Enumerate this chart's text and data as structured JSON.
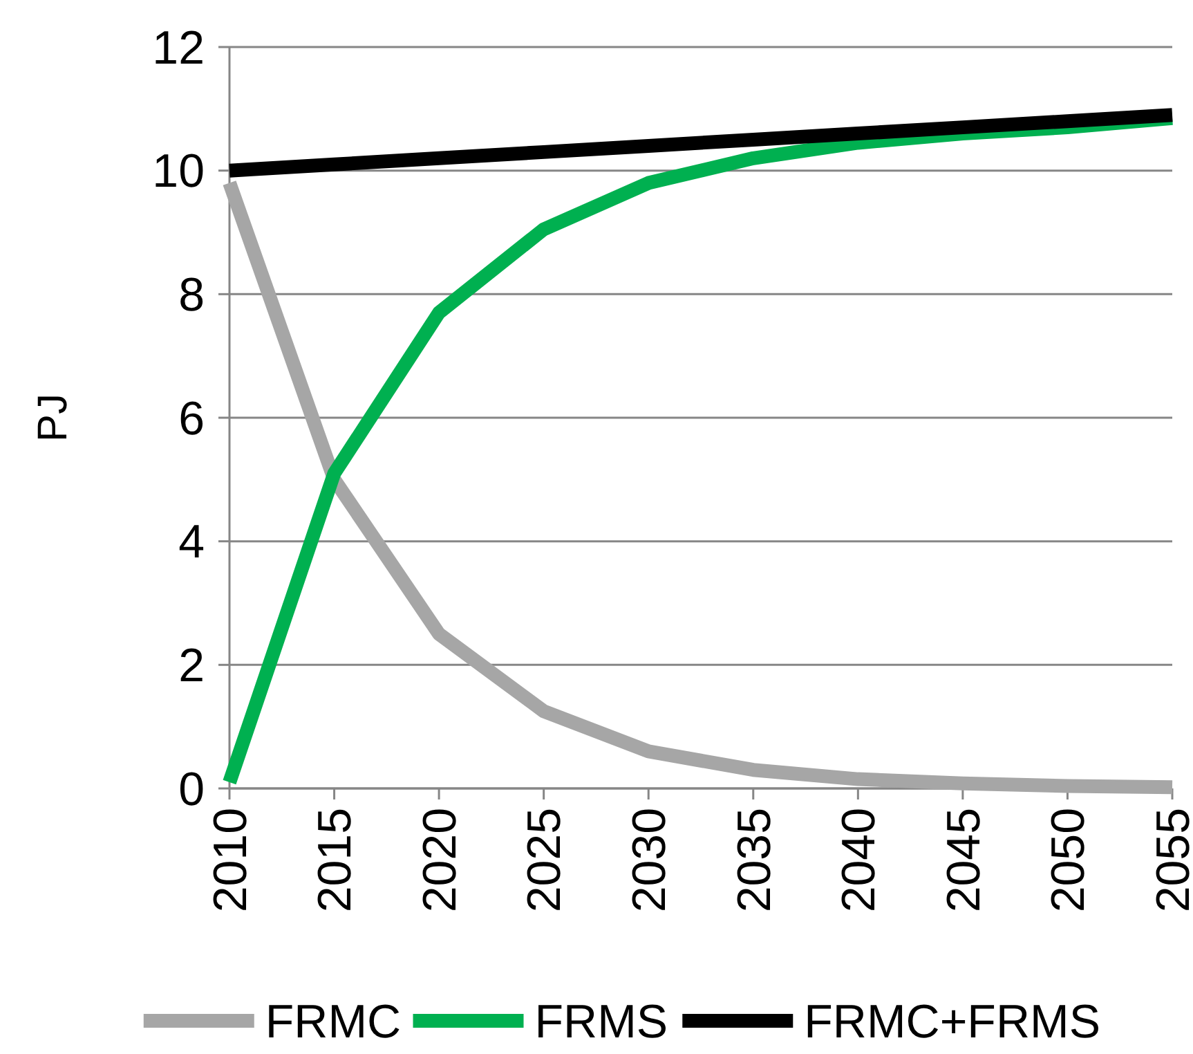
{
  "chart_data": {
    "type": "line",
    "ylabel": "PJ",
    "categories": [
      "2010",
      "2015",
      "2020",
      "2025",
      "2030",
      "2035",
      "2040",
      "2045",
      "2050",
      "2055"
    ],
    "series": [
      {
        "name": "FRMC",
        "color": "#a6a6a6",
        "values": [
          9.8,
          5.0,
          2.5,
          1.25,
          0.6,
          0.3,
          0.15,
          0.08,
          0.04,
          0.02
        ]
      },
      {
        "name": "FRMS",
        "color": "#00b050",
        "values": [
          0.1,
          5.1,
          7.7,
          9.05,
          9.8,
          10.2,
          10.45,
          10.6,
          10.7,
          10.85
        ]
      },
      {
        "name": "FRMC+FRMS",
        "color": "#000000",
        "values": [
          10.0,
          10.1,
          10.2,
          10.3,
          10.4,
          10.5,
          10.6,
          10.7,
          10.8,
          10.9
        ]
      }
    ],
    "ylim": [
      0,
      12
    ],
    "yticks": [
      0,
      2,
      4,
      6,
      8,
      10,
      12
    ],
    "grid": "y",
    "legend": "bottom",
    "marker": "none",
    "line_style": "solid"
  }
}
